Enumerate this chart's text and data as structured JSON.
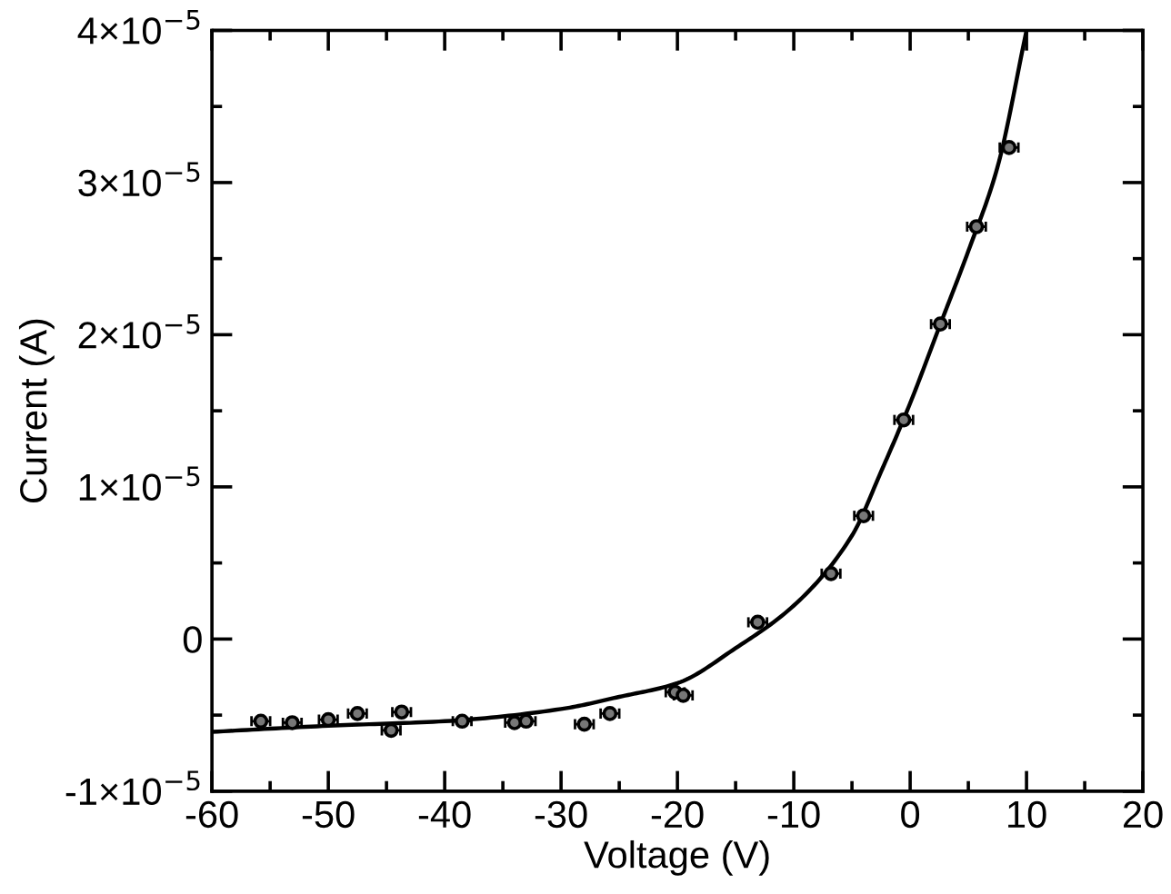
{
  "chart_data": {
    "type": "scatter",
    "xlabel": "Voltage (V)",
    "ylabel": "Current (A)",
    "xlim": [
      -60,
      20
    ],
    "ylim": [
      -1e-05,
      4e-05
    ],
    "xticks": [
      -60,
      {
        "value": -55,
        "label": null
      },
      -50,
      {
        "value": -45,
        "label": null
      },
      -40,
      {
        "value": -35,
        "label": null
      },
      -30,
      {
        "value": -25,
        "label": null
      },
      -20,
      {
        "value": -15,
        "label": null
      },
      -10,
      {
        "value": -5,
        "label": null
      },
      0,
      {
        "value": 5,
        "label": null
      },
      10,
      {
        "value": 15,
        "label": null
      },
      20
    ],
    "yticks": [
      {
        "value": -1e-05,
        "label": "-1×10$^{−5}$"
      },
      {
        "value": -5e-06,
        "label": null
      },
      {
        "value": 0,
        "label": "0"
      },
      {
        "value": 5e-06,
        "label": null
      },
      {
        "value": 1e-05,
        "label": "1×10$^{−5}$"
      },
      {
        "value": 1.5e-05,
        "label": null
      },
      {
        "value": 2e-05,
        "label": "2×10$^{−5}$"
      },
      {
        "value": 2.5e-05,
        "label": null
      },
      {
        "value": 3e-05,
        "label": "3×10$^{−5}$"
      },
      {
        "value": 3.5e-05,
        "label": null
      },
      {
        "value": 4e-05,
        "label": "4×10$^{−5}$"
      }
    ],
    "grid": false,
    "legend": false,
    "series": [
      {
        "color": "#000000",
        "marker": "circle",
        "x": [
          -55.8,
          -53.1,
          -50.0,
          -47.5,
          -44.6,
          -43.7,
          -38.5,
          -34.0,
          -33.0,
          -28.0,
          -25.8,
          -20.2,
          -19.5,
          -13.1,
          -6.8,
          -4.0,
          -0.55,
          2.6,
          5.7,
          8.5
        ],
        "values": [
          -5.4e-06,
          -5.5e-06,
          -5.3e-06,
          -4.9e-06,
          -6e-06,
          -4.8e-06,
          -5.4e-06,
          -5.5e-06,
          -5.4e-06,
          -5.6e-06,
          -4.9e-06,
          -3.5e-06,
          -3.7e-06,
          1.1e-06,
          4.3e-06,
          8.1e-06,
          1.44e-05,
          2.07e-05,
          2.71e-05,
          3.23e-05
        ],
        "xerrors": [
          0.8,
          0.8,
          0.8,
          0.8,
          0.8,
          0.8,
          0.8,
          0.8,
          0.8,
          0.8,
          0.8,
          0.8,
          0.8,
          0.8,
          0.8,
          0.8,
          0.8,
          0.8,
          0.8,
          0.8
        ]
      },
      {
        "type": "line",
        "color": "#000000",
        "line_style": "solid",
        "marker": "none",
        "x": [
          -60,
          -50,
          -40,
          -30,
          -25,
          -20,
          -15,
          -10,
          -5,
          -2.5,
          0,
          2.5,
          5,
          7.5,
          10
        ],
        "values": [
          -6.1e-06,
          -5.7e-06,
          -5.4e-06,
          -4.6e-06,
          -3.8e-06,
          -2.9e-06,
          -6e-07,
          2.2e-06,
          6.8e-06,
          1.1e-05,
          1.55e-05,
          2.05e-05,
          2.55e-05,
          3.1e-05,
          4e-05
        ]
      }
    ]
  }
}
